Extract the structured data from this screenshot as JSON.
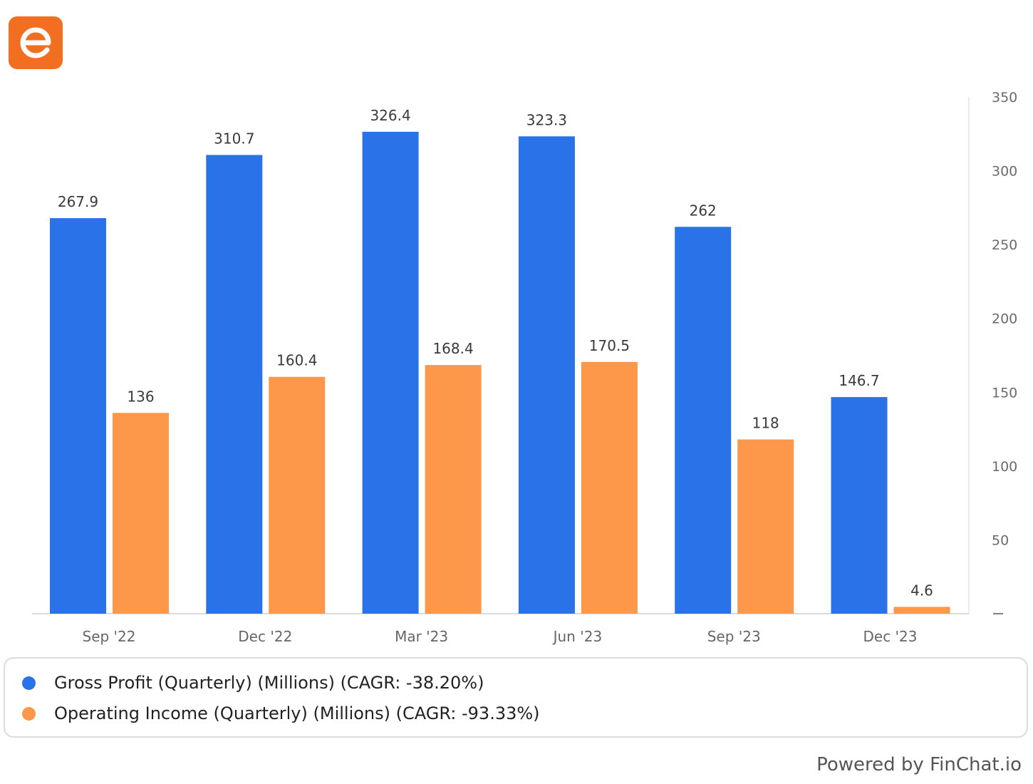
{
  "brand": {
    "logo_icon": "finchat-e-logo-icon",
    "logo_color": "#f26f21"
  },
  "chart_data": {
    "type": "bar",
    "categories": [
      "Sep '22",
      "Dec '22",
      "Mar '23",
      "Jun '23",
      "Sep '23",
      "Dec '23"
    ],
    "series": [
      {
        "name": "Gross Profit (Quarterly) (Millions) (CAGR: -38.20%)",
        "color": "#2a72e8",
        "values": [
          267.9,
          310.7,
          326.4,
          323.3,
          262,
          146.7
        ],
        "labels": [
          "267.9",
          "310.7",
          "326.4",
          "323.3",
          "262",
          "146.7"
        ]
      },
      {
        "name": "Operating Income (Quarterly) (Millions) (CAGR: -93.33%)",
        "color": "#fd974a",
        "values": [
          136,
          160.4,
          168.4,
          170.5,
          118,
          4.6
        ],
        "labels": [
          "136",
          "160.4",
          "168.4",
          "170.5",
          "118",
          "4.6"
        ]
      }
    ],
    "ylim": [
      0,
      350
    ],
    "y_ticks": [
      350,
      300,
      250,
      200,
      150,
      100,
      50
    ],
    "y_axis_position": "right",
    "grid": false,
    "legend_position": "bottom",
    "title": "",
    "xlabel": "",
    "ylabel": ""
  },
  "footer": {
    "text": "Powered by FinChat.io"
  }
}
